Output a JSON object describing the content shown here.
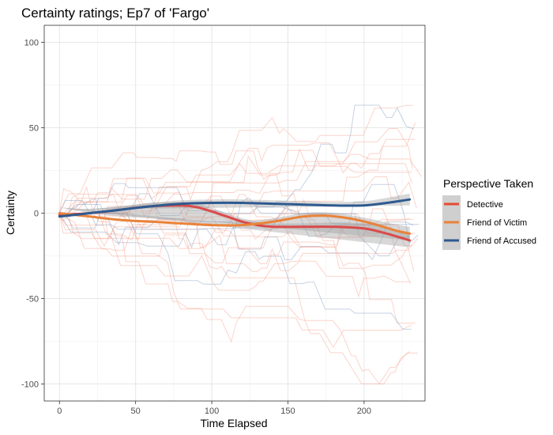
{
  "chart_data": {
    "type": "line",
    "title": "Certainty ratings; Ep7 of 'Fargo'",
    "xlabel": "Time Elapsed",
    "ylabel": "Certainty",
    "xlim": [
      -10,
      240
    ],
    "ylim": [
      -110,
      110
    ],
    "x_ticks": [
      0,
      50,
      100,
      150,
      200
    ],
    "y_ticks": [
      -100,
      -50,
      0,
      50,
      100
    ],
    "x_tick_labels": [
      "0",
      "50",
      "100",
      "150",
      "200"
    ],
    "y_tick_labels": [
      "-100",
      "-50",
      "0",
      "50",
      "100"
    ],
    "grid": true,
    "legend": {
      "title": "Perspective Taken",
      "position": "right",
      "entries": [
        {
          "label": "Detective",
          "color": "#E64B35"
        },
        {
          "label": "Friend of Victim",
          "color": "#E8833A"
        },
        {
          "label": "Friend of Accused",
          "color": "#2E5A8F"
        }
      ]
    },
    "colors": {
      "detective_smooth": "#D94A4A",
      "victim_smooth": "#E8833A",
      "accused_smooth": "#2E5A8F",
      "raw_line": "#F7A08C",
      "raw_accused": "#8FA6C6",
      "band": "#9E9E9E"
    },
    "series": [
      {
        "name": "Detective",
        "x": [
          0,
          20,
          40,
          60,
          80,
          90,
          100,
          110,
          120,
          130,
          140,
          160,
          180,
          200,
          215,
          230
        ],
        "y": [
          -1,
          0,
          2,
          4,
          4.5,
          3.5,
          1,
          -2,
          -5,
          -7,
          -8,
          -8,
          -8,
          -9,
          -12,
          -16
        ],
        "band": [
          4,
          2.5,
          2,
          2,
          2,
          2,
          2,
          2,
          2,
          2,
          2,
          2,
          2.5,
          3,
          3.5,
          4
        ]
      },
      {
        "name": "Friend of Victim",
        "x": [
          0,
          20,
          40,
          60,
          80,
          100,
          120,
          140,
          160,
          175,
          190,
          205,
          220,
          230
        ],
        "y": [
          0,
          -2,
          -4,
          -5,
          -6,
          -7,
          -7,
          -5,
          -2,
          -1.5,
          -3,
          -6,
          -10,
          -12
        ],
        "band": [
          3.5,
          2,
          2,
          2,
          2,
          2,
          2,
          2,
          2,
          2,
          2,
          2.5,
          3.5,
          4
        ]
      },
      {
        "name": "Friend of Accused",
        "x": [
          0,
          20,
          40,
          60,
          80,
          100,
          120,
          140,
          160,
          180,
          200,
          215,
          230
        ],
        "y": [
          -2,
          0,
          2,
          4,
          5.5,
          6,
          6,
          5.5,
          5,
          4.5,
          4.5,
          6,
          8
        ],
        "band": [
          4,
          2.5,
          2,
          2,
          2,
          2,
          2,
          2,
          2,
          2,
          2.5,
          3,
          3.5
        ]
      }
    ]
  }
}
